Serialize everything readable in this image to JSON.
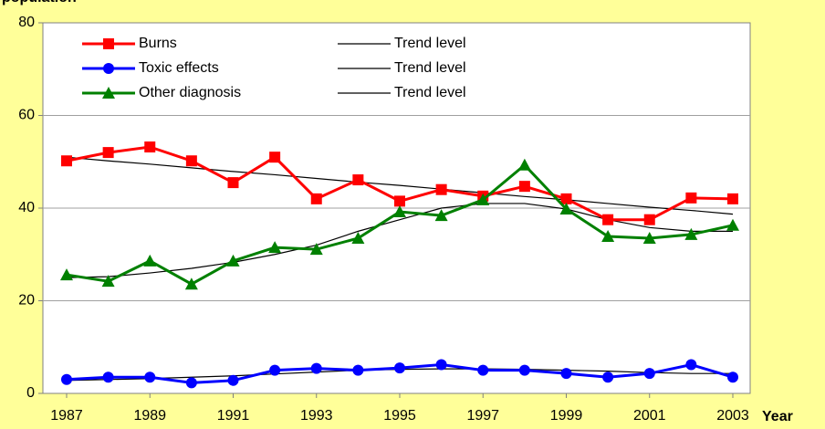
{
  "chart_data": {
    "type": "line",
    "ylabel": "population",
    "xlabel": "Year",
    "x": [
      1987,
      1988,
      1989,
      1990,
      1991,
      1992,
      1993,
      1994,
      1995,
      1996,
      1997,
      1998,
      1999,
      2000,
      2001,
      2002,
      2003
    ],
    "xlim": [
      1987,
      2003
    ],
    "xticks": [
      1987,
      1989,
      1991,
      1993,
      1995,
      1997,
      1999,
      2001,
      2003
    ],
    "ylim": [
      0,
      80
    ],
    "yticks": [
      0,
      20,
      40,
      60,
      80
    ],
    "grid": true,
    "series": [
      {
        "name": "Burns",
        "color": "#ff0000",
        "marker": "square",
        "values": [
          50.2,
          52,
          53.2,
          50.2,
          45.5,
          51,
          42,
          46.1,
          41.5,
          44,
          42.6,
          44.7,
          42,
          37.5,
          37.5,
          42.2,
          42
        ]
      },
      {
        "name": "Toxic effects",
        "color": "#0000ff",
        "marker": "circle",
        "values": [
          3,
          3.5,
          3.5,
          2.3,
          2.8,
          5,
          5.4,
          5,
          5.5,
          6.2,
          5,
          5,
          4.3,
          3.5,
          4.3,
          6.2,
          3.5
        ]
      },
      {
        "name": "Other diagnosis",
        "color": "#008000",
        "marker": "triangle",
        "values": [
          25.6,
          24.2,
          28.6,
          23.6,
          28.6,
          31.5,
          31.1,
          33.5,
          39.2,
          38.4,
          41.8,
          49.3,
          39.8,
          33.9,
          33.5,
          34.3,
          36.3
        ]
      },
      {
        "name": "Trend level",
        "color": "#000000",
        "marker": "none",
        "values": [
          51,
          50.2,
          49.5,
          48.7,
          47.9,
          47.2,
          46.4,
          45.6,
          44.9,
          44.1,
          43.3,
          42.5,
          41.8,
          41,
          40.2,
          39.5,
          38.7
        ]
      },
      {
        "name": "Trend level",
        "color": "#000000",
        "marker": "none",
        "values": [
          2.8,
          3,
          3.2,
          3.5,
          3.8,
          4.2,
          4.6,
          5,
          5.2,
          5.3,
          5.3,
          5.2,
          5,
          4.8,
          4.5,
          4.3,
          4.3
        ]
      },
      {
        "name": "Trend level",
        "color": "#000000",
        "marker": "none",
        "values": [
          25,
          25.2,
          26,
          27,
          28.3,
          30,
          32,
          35,
          37.5,
          40,
          41,
          41,
          39.8,
          37.5,
          35.8,
          35,
          35
        ]
      }
    ]
  }
}
